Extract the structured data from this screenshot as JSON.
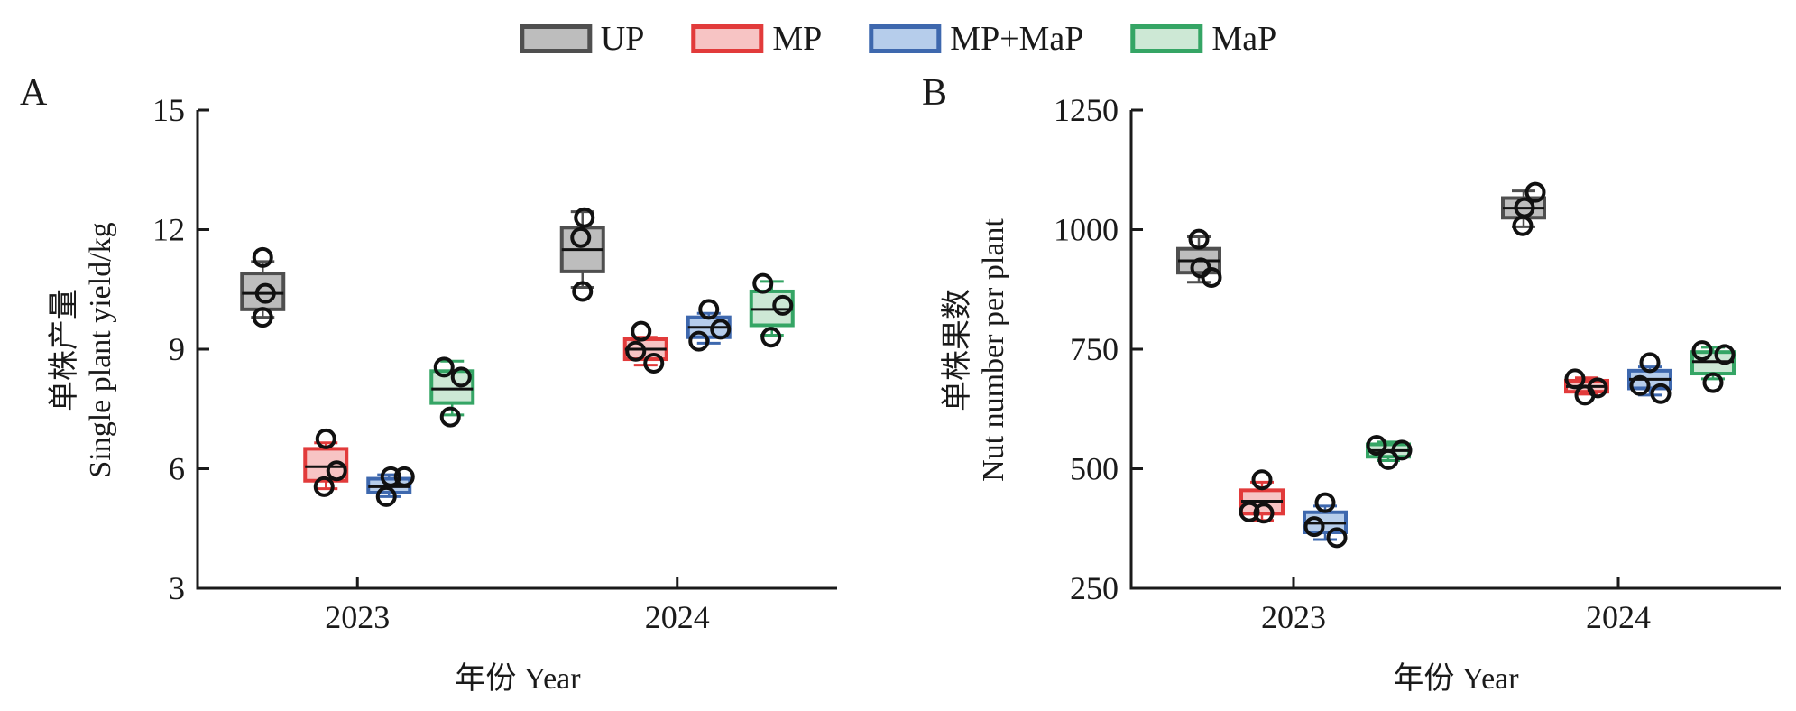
{
  "page": {
    "background": "#ffffff"
  },
  "legend": {
    "items": [
      {
        "label": "UP",
        "fill": "#bdbdbd",
        "stroke": "#4f4f4f"
      },
      {
        "label": "MP",
        "fill": "#f7c4c4",
        "stroke": "#e23b3b"
      },
      {
        "label": "MP+MaP",
        "fill": "#b6cdeb",
        "stroke": "#3e68ae"
      },
      {
        "label": "MaP",
        "fill": "#cde8d5",
        "stroke": "#35a565"
      }
    ]
  },
  "panels": [
    {
      "letter": "A",
      "ylabel_cn": "单株产量",
      "ylabel_en": "Single plant yield/kg",
      "xlabel": "年份 Year"
    },
    {
      "letter": "B",
      "ylabel_cn": "单株果数",
      "ylabel_en": "Nut number per plant",
      "xlabel": "年份 Year"
    }
  ],
  "chart_data": [
    {
      "type": "box",
      "panel": "A",
      "ylabel": "单株产量 Single plant yield/kg",
      "xlabel": "年份 Year",
      "ylim": [
        3,
        15
      ],
      "yticks": [
        3,
        6,
        9,
        12,
        15
      ],
      "categories": [
        "2023",
        "2024"
      ],
      "treatments": [
        "UP",
        "MP",
        "MP+MaP",
        "MaP"
      ],
      "legend_position": "top",
      "grid": false,
      "groups": [
        {
          "year": "2023",
          "treatment": "UP",
          "whisker_low": 9.8,
          "q1": 10.0,
          "median": 10.4,
          "q3": 10.9,
          "whisker_high": 11.2,
          "points": [
            11.3,
            10.4,
            9.8
          ],
          "points_dx": [
            0,
            3,
            0
          ]
        },
        {
          "year": "2023",
          "treatment": "MP",
          "whisker_low": 5.5,
          "q1": 5.7,
          "median": 6.05,
          "q3": 6.5,
          "whisker_high": 6.65,
          "points": [
            6.75,
            5.95,
            5.55
          ],
          "points_dx": [
            0,
            12,
            -2
          ]
        },
        {
          "year": "2023",
          "treatment": "MP+MaP",
          "whisker_low": 5.3,
          "q1": 5.4,
          "median": 5.55,
          "q3": 5.75,
          "whisker_high": 5.85,
          "points": [
            5.8,
            5.8,
            5.3
          ],
          "points_dx": [
            2,
            17,
            -3
          ]
        },
        {
          "year": "2023",
          "treatment": "MaP",
          "whisker_low": 7.35,
          "q1": 7.65,
          "median": 8.0,
          "q3": 8.45,
          "whisker_high": 8.7,
          "points": [
            8.55,
            8.3,
            7.3
          ],
          "points_dx": [
            -9,
            10,
            -2
          ]
        },
        {
          "year": "2024",
          "treatment": "UP",
          "whisker_low": 10.55,
          "q1": 10.95,
          "median": 11.5,
          "q3": 12.05,
          "whisker_high": 12.45,
          "points": [
            12.3,
            11.8,
            10.45
          ],
          "points_dx": [
            2,
            -2,
            0
          ]
        },
        {
          "year": "2024",
          "treatment": "MP",
          "whisker_low": 8.6,
          "q1": 8.75,
          "median": 9.0,
          "q3": 9.25,
          "whisker_high": 9.3,
          "points": [
            9.45,
            8.95,
            8.65
          ],
          "points_dx": [
            -5,
            -11,
            9
          ]
        },
        {
          "year": "2024",
          "treatment": "MP+MaP",
          "whisker_low": 9.15,
          "q1": 9.3,
          "median": 9.55,
          "q3": 9.8,
          "whisker_high": 9.9,
          "points": [
            10.0,
            9.5,
            9.2
          ],
          "points_dx": [
            0,
            13,
            -11
          ]
        },
        {
          "year": "2024",
          "treatment": "MaP",
          "whisker_low": 9.35,
          "q1": 9.6,
          "median": 10.0,
          "q3": 10.45,
          "whisker_high": 10.7,
          "points": [
            10.65,
            10.1,
            9.3
          ],
          "points_dx": [
            -10,
            12,
            -1
          ]
        }
      ]
    },
    {
      "type": "box",
      "panel": "B",
      "ylabel": "单株果数 Nut number per plant",
      "xlabel": "年份 Year",
      "ylim": [
        250,
        1250
      ],
      "yticks": [
        250,
        500,
        750,
        1000,
        1250
      ],
      "categories": [
        "2023",
        "2024"
      ],
      "treatments": [
        "UP",
        "MP",
        "MP+MaP",
        "MaP"
      ],
      "legend_position": "top",
      "grid": false,
      "groups": [
        {
          "year": "2023",
          "treatment": "UP",
          "whisker_low": 890,
          "q1": 910,
          "median": 935,
          "q3": 960,
          "whisker_high": 985,
          "points": [
            980,
            920,
            900
          ],
          "points_dx": [
            0,
            2,
            14
          ]
        },
        {
          "year": "2023",
          "treatment": "MP",
          "whisker_low": 392,
          "q1": 406,
          "median": 432,
          "q3": 455,
          "whisker_high": 472,
          "points": [
            477,
            410,
            407
          ],
          "points_dx": [
            0,
            -14,
            2
          ]
        },
        {
          "year": "2023",
          "treatment": "MP+MaP",
          "whisker_low": 352,
          "q1": 367,
          "median": 386,
          "q3": 409,
          "whisker_high": 422,
          "points": [
            429,
            379,
            356
          ],
          "points_dx": [
            0,
            -12,
            13
          ]
        },
        {
          "year": "2023",
          "treatment": "MaP",
          "whisker_low": 517,
          "q1": 525,
          "median": 538,
          "q3": 551,
          "whisker_high": 556,
          "points": [
            549,
            539,
            519
          ],
          "points_dx": [
            -13,
            15,
            0
          ]
        },
        {
          "year": "2024",
          "treatment": "UP",
          "whisker_low": 1006,
          "q1": 1025,
          "median": 1045,
          "q3": 1066,
          "whisker_high": 1081,
          "points": [
            1078,
            1046,
            1008
          ],
          "points_dx": [
            13,
            1,
            -1
          ]
        },
        {
          "year": "2024",
          "treatment": "MP",
          "whisker_low": 656,
          "q1": 661,
          "median": 672,
          "q3": 684,
          "whisker_high": 690,
          "points": [
            688,
            669,
            654
          ],
          "points_dx": [
            -13,
            12,
            -2
          ]
        },
        {
          "year": "2024",
          "treatment": "MP+MaP",
          "whisker_low": 654,
          "q1": 668,
          "median": 687,
          "q3": 705,
          "whisker_high": 713,
          "points": [
            722,
            674,
            657
          ],
          "points_dx": [
            0,
            -11,
            12
          ]
        },
        {
          "year": "2024",
          "treatment": "MaP",
          "whisker_low": 688,
          "q1": 699,
          "median": 724,
          "q3": 744,
          "whisker_high": 754,
          "points": [
            747,
            739,
            680
          ],
          "points_dx": [
            -12,
            13,
            0
          ]
        }
      ]
    }
  ]
}
